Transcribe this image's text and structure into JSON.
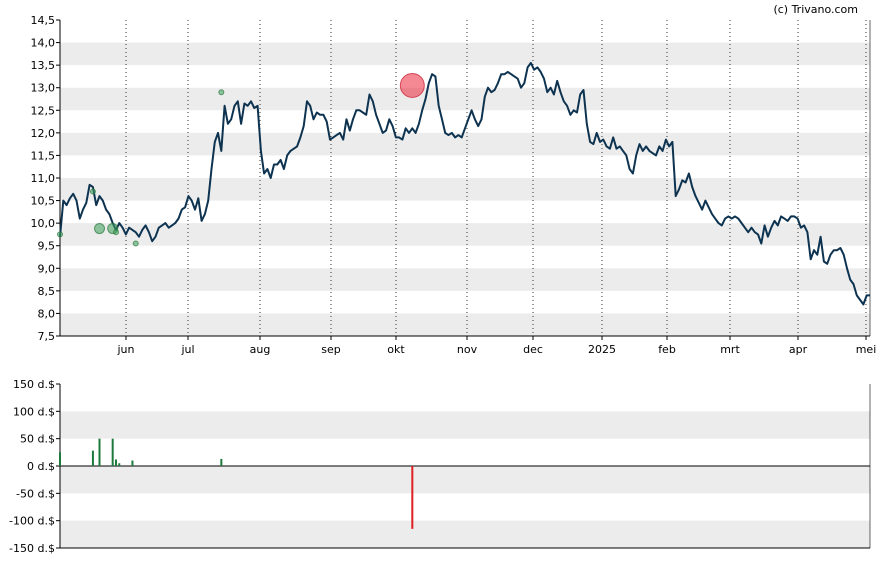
{
  "credit": "(c) Trivano.com",
  "chart_data": [
    {
      "type": "line",
      "name": "price-panel",
      "ylim": [
        7.5,
        14.5
      ],
      "y_ticks": [
        "14,5",
        "14,0",
        "13,5",
        "13,0",
        "12,5",
        "12,0",
        "11,5",
        "11,0",
        "10,5",
        "10,0",
        "9,5",
        "9,0",
        "8,5",
        "8,0",
        "7,5"
      ],
      "x_ticks": [
        "jun",
        "jul",
        "aug",
        "sep",
        "okt",
        "nov",
        "dec",
        "2025",
        "feb",
        "mrt",
        "apr",
        "mei"
      ],
      "grid": "alternating horizontal bands, dotted vertical lines at month starts",
      "line_color": "#0d3350",
      "series": [
        {
          "values": [
            9.7,
            10.5,
            10.4,
            10.55,
            10.65,
            10.5,
            10.1,
            10.3,
            10.45,
            10.85,
            10.8,
            10.4,
            10.6,
            10.5,
            10.3,
            10.2,
            10.0,
            9.85,
            10.0,
            9.9,
            9.75,
            9.9,
            9.85,
            9.8,
            9.7,
            9.85,
            9.95,
            9.8,
            9.6,
            9.7,
            9.9,
            9.95,
            10.0,
            9.9,
            9.95,
            10.0,
            10.1,
            10.3,
            10.35,
            10.6,
            10.5,
            10.3,
            10.55,
            10.05,
            10.2,
            10.5,
            11.2,
            11.8,
            12.0,
            11.6,
            12.6,
            12.2,
            12.3,
            12.6,
            12.7,
            12.2,
            12.65,
            12.6,
            12.7,
            12.55,
            12.6,
            11.6,
            11.1,
            11.2,
            11.0,
            11.3,
            11.3,
            11.4,
            11.2,
            11.5,
            11.6,
            11.65,
            11.7,
            11.9,
            12.15,
            12.7,
            12.6,
            12.3,
            12.45,
            12.4,
            12.4,
            12.25,
            11.85,
            11.9,
            11.95,
            12.0,
            11.85,
            12.3,
            12.05,
            12.3,
            12.5,
            12.5,
            12.45,
            12.4,
            12.85,
            12.7,
            12.4,
            12.2,
            12.0,
            12.05,
            12.3,
            12.15,
            11.9,
            11.9,
            11.85,
            12.1,
            12.0,
            12.1,
            12.0,
            12.2,
            12.5,
            12.75,
            13.1,
            13.3,
            13.25,
            12.6,
            12.3,
            12.0,
            11.95,
            12.0,
            11.9,
            11.95,
            11.9,
            12.1,
            12.3,
            12.5,
            12.3,
            12.15,
            12.3,
            12.8,
            13.0,
            12.9,
            12.95,
            13.1,
            13.3,
            13.3,
            13.35,
            13.3,
            13.25,
            13.2,
            13.0,
            13.1,
            13.45,
            13.55,
            13.4,
            13.45,
            13.35,
            13.2,
            12.9,
            13.0,
            12.85,
            13.15,
            12.9,
            12.7,
            12.6,
            12.4,
            12.5,
            12.45,
            12.85,
            12.95,
            12.2,
            11.8,
            11.75,
            12.0,
            11.8,
            11.85,
            11.7,
            11.65,
            11.9,
            11.65,
            11.7,
            11.6,
            11.5,
            11.2,
            11.1,
            11.5,
            11.75,
            11.6,
            11.7,
            11.6,
            11.55,
            11.5,
            11.7,
            11.6,
            11.85,
            11.7,
            11.8,
            10.6,
            10.75,
            10.95,
            10.9,
            11.1,
            10.8,
            10.6,
            10.45,
            10.3,
            10.5,
            10.35,
            10.2,
            10.1,
            10.0,
            9.95,
            10.1,
            10.15,
            10.1,
            10.15,
            10.1,
            10.0,
            9.9,
            9.8,
            9.9,
            9.8,
            9.75,
            9.55,
            9.95,
            9.7,
            9.9,
            10.05,
            9.95,
            10.15,
            10.1,
            10.05,
            10.15,
            10.15,
            10.1,
            9.9,
            9.95,
            9.8,
            9.2,
            9.4,
            9.3,
            9.7,
            9.15,
            9.1,
            9.3,
            9.4,
            9.4,
            9.45,
            9.3,
            9.0,
            8.75,
            8.65,
            8.4,
            8.3,
            8.2,
            8.4,
            8.4
          ]
        }
      ],
      "annotations": [
        {
          "type": "buy-marker",
          "index": 0,
          "value": 9.75,
          "size": "small"
        },
        {
          "type": "buy-marker",
          "index": 10,
          "value": 10.7,
          "size": "small"
        },
        {
          "type": "buy-marker",
          "index": 12,
          "value": 9.88,
          "size": "medium"
        },
        {
          "type": "buy-marker",
          "index": 16,
          "value": 9.88,
          "size": "medium"
        },
        {
          "type": "buy-marker",
          "index": 17,
          "value": 9.8,
          "size": "small"
        },
        {
          "type": "buy-marker",
          "index": 23,
          "value": 9.55,
          "size": "small"
        },
        {
          "type": "buy-marker",
          "index": 49,
          "value": 12.9,
          "size": "small"
        },
        {
          "type": "sell-marker",
          "index": 107,
          "value": 13.05,
          "size": "large"
        }
      ]
    },
    {
      "type": "bar",
      "name": "volume-panel",
      "ylim": [
        -150,
        150
      ],
      "unit": "d.$",
      "y_ticks": [
        "150 d.$",
        "100 d.$",
        "50 d.$",
        "0 d.$",
        "-50 d.$",
        "-100 d.$",
        "-150 d.$"
      ],
      "positive_color": "#1e7a3c",
      "negative_color": "#e02020",
      "bars": [
        {
          "index": 0,
          "value": 25
        },
        {
          "index": 10,
          "value": 28
        },
        {
          "index": 12,
          "value": 50
        },
        {
          "index": 16,
          "value": 50
        },
        {
          "index": 17,
          "value": 12
        },
        {
          "index": 18,
          "value": 5
        },
        {
          "index": 22,
          "value": 10
        },
        {
          "index": 49,
          "value": 13
        },
        {
          "index": 107,
          "value": -115
        }
      ]
    }
  ]
}
